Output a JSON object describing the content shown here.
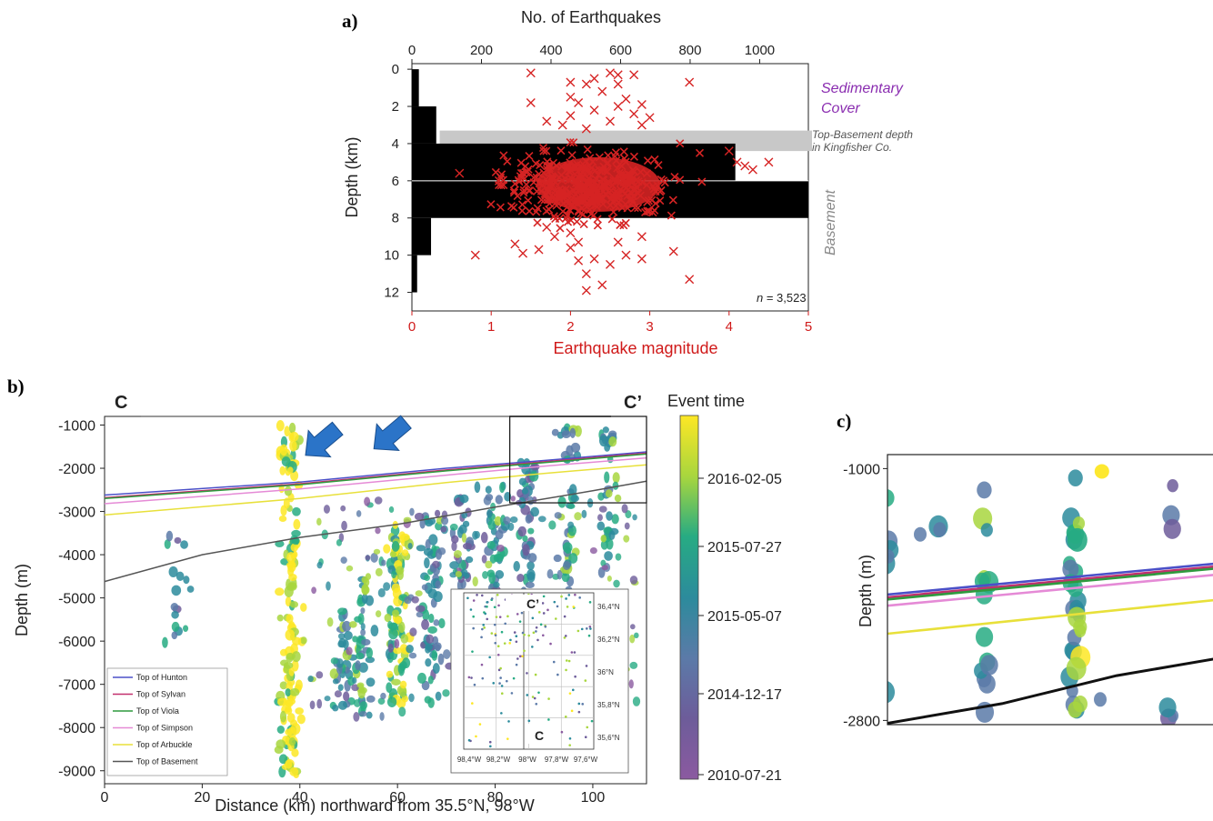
{
  "panels": {
    "a": "a)",
    "b": "b)",
    "c": "c)"
  },
  "chart_data": [
    {
      "type": "bar",
      "panel": "a",
      "orientation": "horizontal",
      "top_axis_title": "No. of Earthquakes",
      "bottom_axis_title": "Earthquake magnitude",
      "ylabel": "Depth (km)",
      "top_ticks": [
        0,
        200,
        400,
        600,
        800,
        1000
      ],
      "bottom_ticks": [
        0,
        1,
        2,
        3,
        4,
        5
      ],
      "y_ticks": [
        0,
        2,
        4,
        6,
        8,
        10,
        12
      ],
      "count_lim": [
        0,
        1140
      ],
      "mag_lim": [
        0,
        5
      ],
      "depth_lim": [
        -0.3,
        13
      ],
      "histogram": [
        {
          "depth_from": 0,
          "depth_to": 2,
          "count": 20
        },
        {
          "depth_from": 2,
          "depth_to": 4,
          "count": 70
        },
        {
          "depth_from": 4,
          "depth_to": 6,
          "count": 930
        },
        {
          "depth_from": 6,
          "depth_to": 8,
          "count": 1140
        },
        {
          "depth_from": 8,
          "depth_to": 10,
          "count": 55
        },
        {
          "depth_from": 10,
          "depth_to": 12,
          "count": 15
        }
      ],
      "top_basement_band": {
        "from": 3.3,
        "to": 4.4
      },
      "annotations": {
        "sedimentary": [
          "Sedimentary",
          "Cover"
        ],
        "top_basement": [
          "Top-Basement depth",
          "in Kingfisher Co."
        ],
        "basement": "Basement",
        "n_prefix": "n",
        "n_value": " = 3,523"
      },
      "marker_color": "#d62424",
      "outliers": [
        [
          1.5,
          0.2
        ],
        [
          2.0,
          0.7
        ],
        [
          2.2,
          0.8
        ],
        [
          2.3,
          0.5
        ],
        [
          2.5,
          0.2
        ],
        [
          2.6,
          0.3
        ],
        [
          2.8,
          0.3
        ],
        [
          2.6,
          0.8
        ],
        [
          3.5,
          0.7
        ],
        [
          2.0,
          1.5
        ],
        [
          2.4,
          1.2
        ],
        [
          2.1,
          1.8
        ],
        [
          1.5,
          1.8
        ],
        [
          2.7,
          1.6
        ],
        [
          2.9,
          1.9
        ],
        [
          2.0,
          2.5
        ],
        [
          2.8,
          2.4
        ],
        [
          2.5,
          2.8
        ],
        [
          3.0,
          2.6
        ],
        [
          1.9,
          3.0
        ],
        [
          2.3,
          2.2
        ],
        [
          2.6,
          2.0
        ],
        [
          2.2,
          3.2
        ],
        [
          2.9,
          3.0
        ],
        [
          1.7,
          2.8
        ],
        [
          4.1,
          5.0
        ],
        [
          4.5,
          5.0
        ],
        [
          4.3,
          5.4
        ],
        [
          4.2,
          5.2
        ],
        [
          4.0,
          4.4
        ],
        [
          1.1,
          6.0
        ],
        [
          0.6,
          5.6
        ],
        [
          0.8,
          10.0
        ],
        [
          1.4,
          9.9
        ],
        [
          1.6,
          9.7
        ],
        [
          1.3,
          9.4
        ],
        [
          1.8,
          9.0
        ],
        [
          2.0,
          9.6
        ],
        [
          2.1,
          9.3
        ],
        [
          2.3,
          10.2
        ],
        [
          2.1,
          10.3
        ],
        [
          2.2,
          11.0
        ],
        [
          2.4,
          11.6
        ],
        [
          2.2,
          11.9
        ],
        [
          2.5,
          10.5
        ],
        [
          2.7,
          10.0
        ],
        [
          2.9,
          10.2
        ],
        [
          3.3,
          9.8
        ],
        [
          3.5,
          11.3
        ],
        [
          2.6,
          9.3
        ],
        [
          2.9,
          9.0
        ],
        [
          1.7,
          8.5
        ],
        [
          2.0,
          8.8
        ]
      ],
      "cloud": {
        "center_mag": 2.2,
        "center_depth": 6.3,
        "spread_mag": 0.75,
        "spread_depth": 1.2,
        "count": 420,
        "mag_range": [
          0.9,
          4.1
        ],
        "depth_range": [
          3.6,
          8.6
        ]
      }
    },
    {
      "type": "scatter",
      "panel": "b",
      "title_left": "C",
      "title_right": "C’",
      "xlabel": "Distance (km) northward from 35.5°N, 98°W",
      "ylabel": "Depth (m)",
      "x_ticks": [
        0,
        20,
        40,
        60,
        80,
        100
      ],
      "y_ticks": [
        -1000,
        -2000,
        -3000,
        -4000,
        -5000,
        -6000,
        -7000,
        -8000,
        -9000
      ],
      "xlim": [
        0,
        111
      ],
      "ylim": [
        -9300,
        -800
      ],
      "colorbar": {
        "title": "Event time",
        "labels": [
          "2016-02-05",
          "2015-07-27",
          "2015-05-07",
          "2014-12-17",
          "2010-07-21"
        ],
        "colors": [
          "#fde725",
          "#a8d63e",
          "#27ab83",
          "#2c8b9c",
          "#5b7aa8",
          "#6d5c9a",
          "#8b5aa0"
        ]
      },
      "horizons": [
        {
          "name": "Top of Hunton",
          "color": "#4b50c8",
          "points": [
            [
              0,
              -2620
            ],
            [
              40,
              -2320
            ],
            [
              70,
              -2000
            ],
            [
              90,
              -1820
            ],
            [
              111,
              -1620
            ]
          ]
        },
        {
          "name": "Top of Sylvan",
          "color": "#c2306e",
          "points": [
            [
              0,
              -2680
            ],
            [
              40,
              -2360
            ],
            [
              70,
              -2040
            ],
            [
              90,
              -1850
            ],
            [
              111,
              -1650
            ]
          ]
        },
        {
          "name": "Top of Viola",
          "color": "#2f9a3e",
          "points": [
            [
              0,
              -2700
            ],
            [
              40,
              -2380
            ],
            [
              70,
              -2060
            ],
            [
              90,
              -1870
            ],
            [
              111,
              -1670
            ]
          ]
        },
        {
          "name": "Top of Simpson",
          "color": "#e58ad6",
          "points": [
            [
              0,
              -2820
            ],
            [
              40,
              -2480
            ],
            [
              70,
              -2160
            ],
            [
              90,
              -1950
            ],
            [
              111,
              -1760
            ]
          ]
        },
        {
          "name": "Top of Arbuckle",
          "color": "#e8e03a",
          "points": [
            [
              0,
              -3080
            ],
            [
              40,
              -2700
            ],
            [
              70,
              -2330
            ],
            [
              90,
              -2120
            ],
            [
              111,
              -1920
            ]
          ]
        },
        {
          "name": "Top of Basement",
          "color": "#555555",
          "points": [
            [
              0,
              -4620
            ],
            [
              20,
              -4000
            ],
            [
              40,
              -3600
            ],
            [
              60,
              -3300
            ],
            [
              80,
              -2900
            ],
            [
              100,
              -2520
            ],
            [
              111,
              -2300
            ]
          ]
        }
      ],
      "columns": [
        {
          "x": 15,
          "from": -3500,
          "to": -7000,
          "n": 22,
          "hue": 0.45
        },
        {
          "x": 38,
          "from": -1000,
          "to": -9200,
          "n": 140,
          "hue": 0.92
        },
        {
          "x": 49,
          "from": -5000,
          "to": -7600,
          "n": 30,
          "hue": 0.5
        },
        {
          "x": 53,
          "from": -4500,
          "to": -7800,
          "n": 40,
          "hue": 0.6
        },
        {
          "x": 60,
          "from": -3300,
          "to": -7500,
          "n": 90,
          "hue": 0.8
        },
        {
          "x": 67,
          "from": -3000,
          "to": -7500,
          "n": 60,
          "hue": 0.45
        },
        {
          "x": 73,
          "from": -2700,
          "to": -7200,
          "n": 60,
          "hue": 0.35
        },
        {
          "x": 80,
          "from": -2300,
          "to": -6400,
          "n": 60,
          "hue": 0.5
        },
        {
          "x": 87,
          "from": -1800,
          "to": -6200,
          "n": 60,
          "hue": 0.4
        },
        {
          "x": 95,
          "from": -1000,
          "to": -5800,
          "n": 60,
          "hue": 0.55
        },
        {
          "x": 103,
          "from": -1000,
          "to": -5400,
          "n": 40,
          "hue": 0.6
        }
      ],
      "arrows": [
        [
          55,
          -1300
        ],
        [
          87,
          -1400
        ]
      ],
      "inset": {
        "labels_top": "C’",
        "labels_bottom": "C",
        "lon_ticks": [
          "98,4°W",
          "98,2°W",
          "98°W",
          "97,8°W",
          "97,6°W"
        ],
        "lat_ticks": [
          "36,4°N",
          "36,2°N",
          "36°N",
          "35,8°N",
          "35,6°N"
        ]
      },
      "zoom_box": {
        "x_from": 83,
        "x_to": 111,
        "y_from": -800,
        "y_to": -2800
      }
    },
    {
      "type": "scatter",
      "panel": "c",
      "ylabel": "Depth (m)",
      "y_ticks": [
        -1000,
        -2800
      ],
      "ylim": [
        -2830,
        -900
      ],
      "horizons": [
        {
          "name": "Top of Hunton",
          "color": "#4b50c8",
          "points": [
            [
              0,
              -1900
            ],
            [
              1,
              -1680
            ]
          ]
        },
        {
          "name": "Top of Sylvan",
          "color": "#c2306e",
          "points": [
            [
              0,
              -1920
            ],
            [
              1,
              -1700
            ]
          ]
        },
        {
          "name": "Top of Viola",
          "color": "#2f9a3e",
          "points": [
            [
              0,
              -1935
            ],
            [
              1,
              -1715
            ]
          ]
        },
        {
          "name": "Top of Simpson",
          "color": "#e58ad6",
          "points": [
            [
              0,
              -1980
            ],
            [
              1,
              -1760
            ]
          ]
        },
        {
          "name": "Top of Arbuckle",
          "color": "#e8e03a",
          "points": [
            [
              0,
              -2180
            ],
            [
              1,
              -1940
            ]
          ]
        },
        {
          "name": "Top of Basement",
          "color": "#111111",
          "points": [
            [
              0,
              -2820
            ],
            [
              0.35,
              -2680
            ],
            [
              0.7,
              -2480
            ],
            [
              1,
              -2360
            ]
          ]
        }
      ]
    }
  ]
}
